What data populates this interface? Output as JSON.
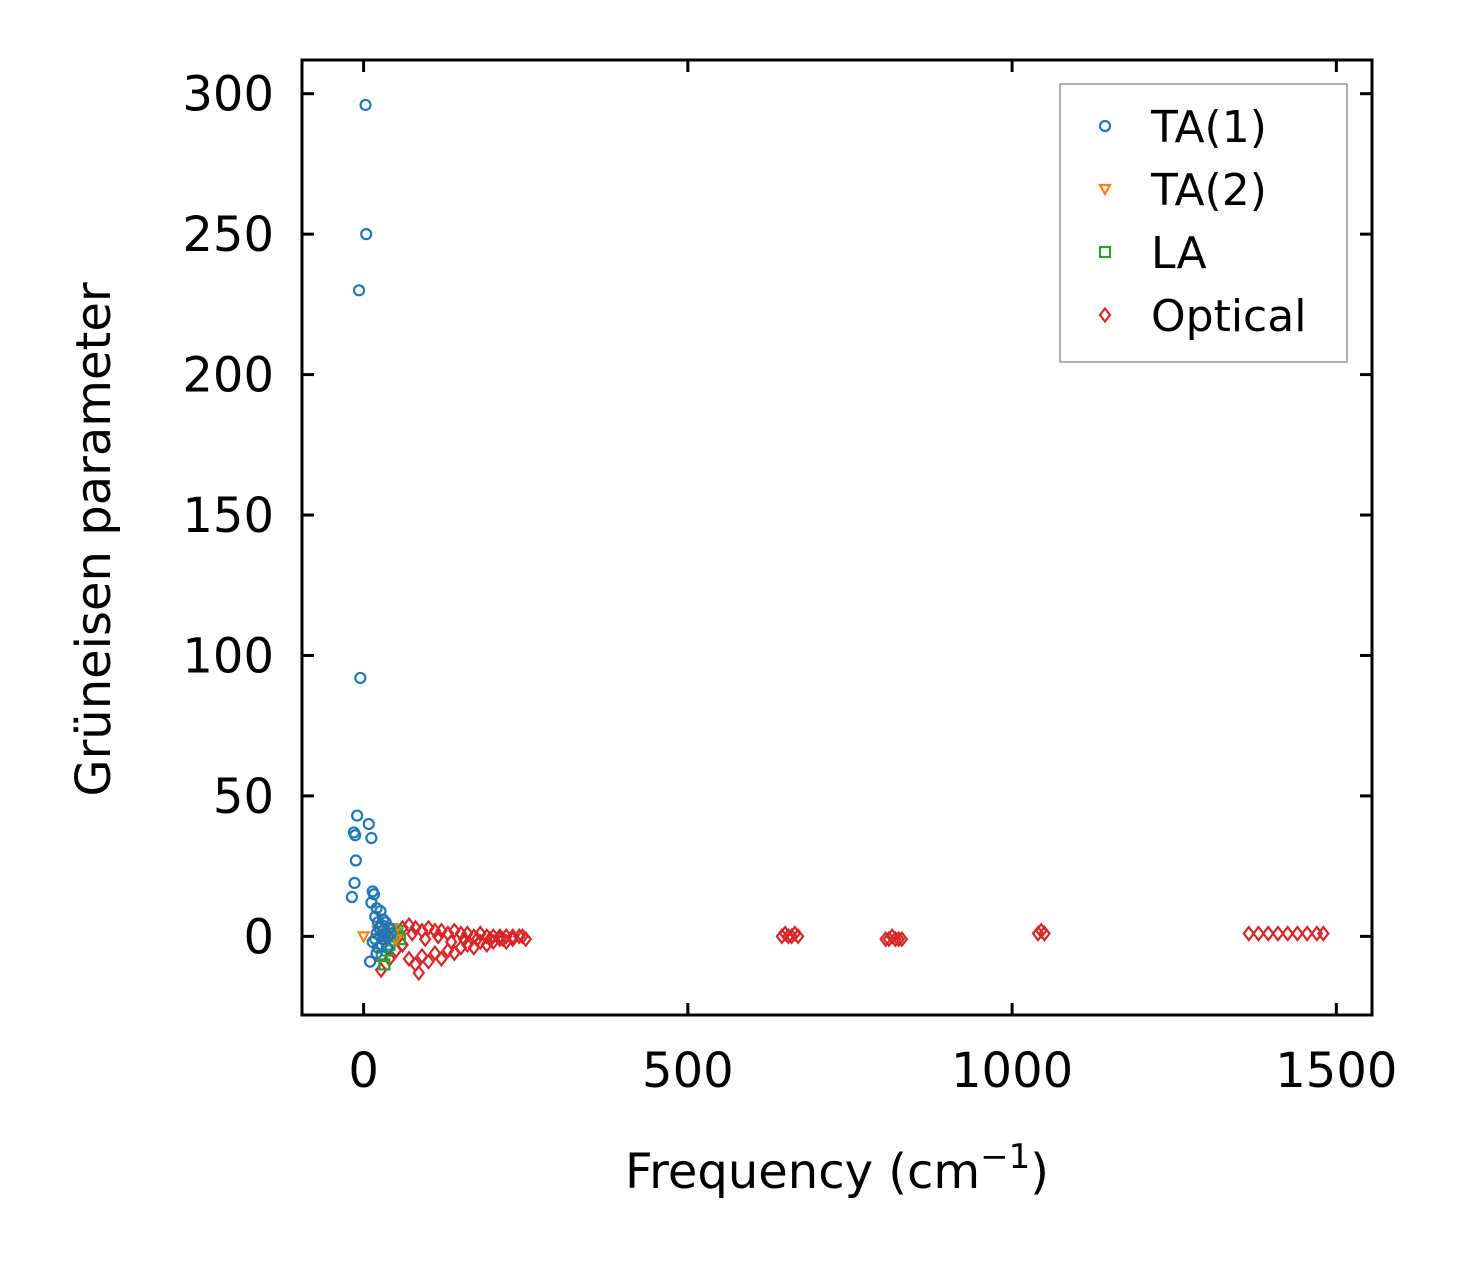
{
  "chart_data": {
    "type": "scatter",
    "title": "",
    "xlabel": "Frequency (cm",
    "xlabel_sup": "−1",
    "xlabel_close": ")",
    "ylabel": "Grüneisen parameter",
    "xlim": [
      -95,
      1555
    ],
    "ylim": [
      -28,
      312
    ],
    "xticks": [
      0,
      500,
      1000,
      1500
    ],
    "yticks": [
      0,
      50,
      100,
      150,
      200,
      250,
      300
    ],
    "grid": false,
    "legend_position": "top-right",
    "series": [
      {
        "name": "TA(1)",
        "marker": "circle",
        "color": "#1f77b4",
        "points": [
          [
            3,
            296
          ],
          [
            4,
            250
          ],
          [
            -7,
            230
          ],
          [
            -5,
            92
          ],
          [
            -10,
            43
          ],
          [
            8,
            40
          ],
          [
            -15,
            37
          ],
          [
            -13,
            36
          ],
          [
            12,
            35
          ],
          [
            -12,
            27
          ],
          [
            -14,
            19
          ],
          [
            -18,
            14
          ],
          [
            14,
            16
          ],
          [
            16,
            15
          ],
          [
            12,
            12
          ],
          [
            20,
            10
          ],
          [
            26,
            9
          ],
          [
            18,
            7
          ],
          [
            22,
            5
          ],
          [
            28,
            4
          ],
          [
            24,
            3
          ],
          [
            30,
            2
          ],
          [
            34,
            1
          ],
          [
            20,
            1
          ],
          [
            26,
            0
          ],
          [
            32,
            -1
          ],
          [
            38,
            0
          ],
          [
            14,
            -2
          ],
          [
            28,
            -3
          ],
          [
            36,
            -4
          ],
          [
            22,
            -4
          ],
          [
            30,
            6
          ],
          [
            40,
            3
          ],
          [
            18,
            -1
          ],
          [
            34,
            5
          ],
          [
            42,
            1
          ],
          [
            10,
            -9
          ],
          [
            20,
            -6
          ]
        ]
      },
      {
        "name": "TA(2)",
        "marker": "triangle-down",
        "color": "#ff7f0e",
        "points": [
          [
            0,
            0
          ],
          [
            22,
            2
          ],
          [
            30,
            -2
          ],
          [
            38,
            1
          ],
          [
            44,
            3
          ],
          [
            50,
            -1
          ],
          [
            46,
            1
          ],
          [
            34,
            0
          ]
        ]
      },
      {
        "name": "LA",
        "marker": "square",
        "color": "#2ca02c",
        "points": [
          [
            28,
            -7
          ],
          [
            32,
            -10
          ],
          [
            40,
            -3
          ],
          [
            46,
            0
          ],
          [
            52,
            2
          ],
          [
            56,
            -1
          ],
          [
            36,
            -5
          ],
          [
            48,
            1
          ]
        ]
      },
      {
        "name": "Optical",
        "marker": "diamond",
        "color": "#d62728",
        "points": [
          [
            27,
            -12
          ],
          [
            40,
            -8
          ],
          [
            50,
            -5
          ],
          [
            60,
            -3
          ],
          [
            70,
            -8
          ],
          [
            80,
            -10
          ],
          [
            85,
            -13
          ],
          [
            90,
            -7
          ],
          [
            100,
            -9
          ],
          [
            110,
            -6
          ],
          [
            120,
            -8
          ],
          [
            130,
            -5
          ],
          [
            140,
            -6
          ],
          [
            150,
            -4
          ],
          [
            160,
            -3
          ],
          [
            170,
            -4
          ],
          [
            180,
            -2
          ],
          [
            190,
            -3
          ],
          [
            200,
            -2
          ],
          [
            210,
            -1
          ],
          [
            220,
            -2
          ],
          [
            230,
            -1
          ],
          [
            240,
            0
          ],
          [
            250,
            -1
          ],
          [
            60,
            3
          ],
          [
            70,
            4
          ],
          [
            80,
            3
          ],
          [
            90,
            2
          ],
          [
            100,
            3
          ],
          [
            110,
            2
          ],
          [
            120,
            2
          ],
          [
            130,
            1
          ],
          [
            140,
            2
          ],
          [
            150,
            1
          ],
          [
            160,
            1
          ],
          [
            170,
            0
          ],
          [
            180,
            1
          ],
          [
            190,
            0
          ],
          [
            200,
            0
          ],
          [
            210,
            0
          ],
          [
            220,
            0
          ],
          [
            230,
            0
          ],
          [
            245,
            0
          ],
          [
            75,
            1
          ],
          [
            95,
            -1
          ],
          [
            115,
            0
          ],
          [
            135,
            -2
          ],
          [
            155,
            -1
          ],
          [
            175,
            -1
          ],
          [
            195,
            -1
          ],
          [
            215,
            -1
          ],
          [
            645,
            0
          ],
          [
            650,
            1
          ],
          [
            655,
            0
          ],
          [
            660,
            0
          ],
          [
            665,
            1
          ],
          [
            670,
            0
          ],
          [
            805,
            -1
          ],
          [
            810,
            -1
          ],
          [
            815,
            0
          ],
          [
            820,
            -1
          ],
          [
            825,
            -1
          ],
          [
            830,
            -1
          ],
          [
            1040,
            1
          ],
          [
            1045,
            2
          ],
          [
            1050,
            1
          ],
          [
            1365,
            1
          ],
          [
            1380,
            1
          ],
          [
            1395,
            1
          ],
          [
            1410,
            1
          ],
          [
            1425,
            1
          ],
          [
            1440,
            1
          ],
          [
            1455,
            1
          ],
          [
            1470,
            1
          ],
          [
            1480,
            1
          ]
        ]
      }
    ]
  }
}
